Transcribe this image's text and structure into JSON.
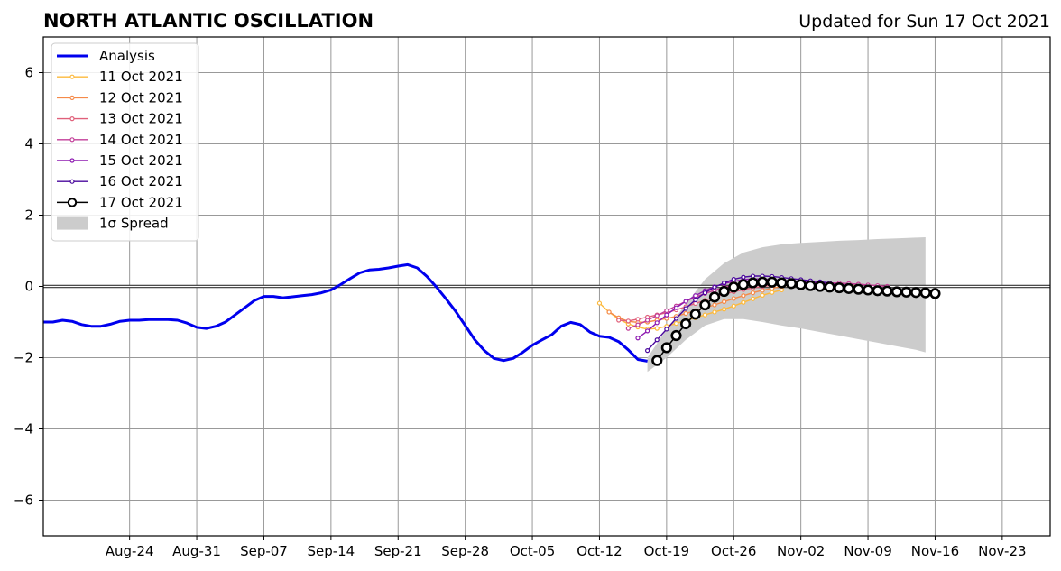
{
  "chart_data": {
    "type": "line",
    "title": "NORTH ATLANTIC OSCILLATION",
    "subtitle": "Updated for Sun 17 Oct 2021",
    "xlabel": "",
    "ylabel": "",
    "xlim": [
      "2021-08-15",
      "2021-11-28"
    ],
    "ylim": [
      -7,
      7
    ],
    "grid": true,
    "legend_position": "top-left",
    "x_ticks": [
      {
        "date": "2021-08-24",
        "label": "Aug-24"
      },
      {
        "date": "2021-08-31",
        "label": "Aug-31"
      },
      {
        "date": "2021-09-07",
        "label": "Sep-07"
      },
      {
        "date": "2021-09-14",
        "label": "Sep-14"
      },
      {
        "date": "2021-09-21",
        "label": "Sep-21"
      },
      {
        "date": "2021-09-28",
        "label": "Sep-28"
      },
      {
        "date": "2021-10-05",
        "label": "Oct-05"
      },
      {
        "date": "2021-10-12",
        "label": "Oct-12"
      },
      {
        "date": "2021-10-19",
        "label": "Oct-19"
      },
      {
        "date": "2021-10-26",
        "label": "Oct-26"
      },
      {
        "date": "2021-11-02",
        "label": "Nov-02"
      },
      {
        "date": "2021-11-09",
        "label": "Nov-09"
      },
      {
        "date": "2021-11-16",
        "label": "Nov-16"
      },
      {
        "date": "2021-11-23",
        "label": "Nov-23"
      }
    ],
    "y_ticks": [
      {
        "value": 6,
        "label": "6"
      },
      {
        "value": 4,
        "label": "4"
      },
      {
        "value": 2,
        "label": "2"
      },
      {
        "value": 0,
        "label": "0"
      },
      {
        "value": -2,
        "label": "−2"
      },
      {
        "value": -4,
        "label": "−4"
      },
      {
        "value": -6,
        "label": "−6"
      }
    ],
    "legend": [
      {
        "label": "Analysis",
        "color": "#0000ee",
        "style": "thick"
      },
      {
        "label": "11 Oct 2021",
        "color": "#fdb93b",
        "style": "small-marker"
      },
      {
        "label": "12 Oct 2021",
        "color": "#f58a49",
        "style": "small-marker"
      },
      {
        "label": "13 Oct 2021",
        "color": "#e0607a",
        "style": "small-marker"
      },
      {
        "label": "14 Oct 2021",
        "color": "#c23d98",
        "style": "small-marker"
      },
      {
        "label": "15 Oct 2021",
        "color": "#8d1ab1",
        "style": "small-marker"
      },
      {
        "label": "16 Oct 2021",
        "color": "#4a089d",
        "style": "small-marker"
      },
      {
        "label": "17 Oct 2021",
        "color": "#000000",
        "style": "big-marker"
      },
      {
        "label": "1σ Spread",
        "color": "#cccccc",
        "style": "patch"
      }
    ],
    "spread": {
      "name": "1σ Spread",
      "color": "#cccccc",
      "x": [
        "2021-10-17",
        "2021-10-19",
        "2021-10-21",
        "2021-10-23",
        "2021-10-25",
        "2021-10-27",
        "2021-10-29",
        "2021-10-31",
        "2021-11-02",
        "2021-11-04",
        "2021-11-06",
        "2021-11-08",
        "2021-11-10",
        "2021-11-12",
        "2021-11-14",
        "2021-11-15"
      ],
      "upper": [
        -2.0,
        -1.2,
        -0.5,
        0.2,
        0.65,
        0.95,
        1.1,
        1.18,
        1.22,
        1.25,
        1.28,
        1.3,
        1.33,
        1.35,
        1.37,
        1.38
      ],
      "lower": [
        -2.4,
        -2.0,
        -1.5,
        -1.1,
        -0.92,
        -0.92,
        -1.0,
        -1.1,
        -1.18,
        -1.28,
        -1.38,
        -1.48,
        -1.58,
        -1.68,
        -1.78,
        -1.85
      ]
    },
    "analysis": {
      "name": "Analysis",
      "color": "#0000ee",
      "x": [
        "2021-08-15",
        "2021-08-16",
        "2021-08-17",
        "2021-08-18",
        "2021-08-19",
        "2021-08-20",
        "2021-08-21",
        "2021-08-22",
        "2021-08-23",
        "2021-08-24",
        "2021-08-25",
        "2021-08-26",
        "2021-08-27",
        "2021-08-28",
        "2021-08-29",
        "2021-08-30",
        "2021-08-31",
        "2021-09-01",
        "2021-09-02",
        "2021-09-03",
        "2021-09-04",
        "2021-09-05",
        "2021-09-06",
        "2021-09-07",
        "2021-09-08",
        "2021-09-09",
        "2021-09-10",
        "2021-09-11",
        "2021-09-12",
        "2021-09-13",
        "2021-09-14",
        "2021-09-15",
        "2021-09-16",
        "2021-09-17",
        "2021-09-18",
        "2021-09-19",
        "2021-09-20",
        "2021-09-21",
        "2021-09-22",
        "2021-09-23",
        "2021-09-24",
        "2021-09-25",
        "2021-09-26",
        "2021-09-27",
        "2021-09-28",
        "2021-09-29",
        "2021-09-30",
        "2021-10-01",
        "2021-10-02",
        "2021-10-03",
        "2021-10-04",
        "2021-10-05",
        "2021-10-06",
        "2021-10-07",
        "2021-10-08",
        "2021-10-09",
        "2021-10-10",
        "2021-10-11",
        "2021-10-12",
        "2021-10-13",
        "2021-10-14",
        "2021-10-15",
        "2021-10-16",
        "2021-10-17"
      ],
      "values": [
        -1.0,
        -1.0,
        -0.95,
        -0.98,
        -1.07,
        -1.12,
        -1.12,
        -1.06,
        -0.98,
        -0.95,
        -0.95,
        -0.93,
        -0.93,
        -0.93,
        -0.95,
        -1.03,
        -1.15,
        -1.18,
        -1.12,
        -1.0,
        -0.8,
        -0.6,
        -0.4,
        -0.28,
        -0.28,
        -0.32,
        -0.29,
        -0.26,
        -0.23,
        -0.18,
        -0.1,
        0.05,
        0.22,
        0.38,
        0.46,
        0.48,
        0.52,
        0.57,
        0.61,
        0.52,
        0.28,
        -0.02,
        -0.35,
        -0.7,
        -1.1,
        -1.5,
        -1.8,
        -2.02,
        -2.08,
        -2.02,
        -1.85,
        -1.65,
        -1.5,
        -1.36,
        -1.12,
        -1.01,
        -1.07,
        -1.28,
        -1.4,
        -1.43,
        -1.55,
        -1.78,
        -2.05,
        -2.1
      ]
    },
    "series": [
      {
        "name": "11 Oct 2021",
        "color": "#fdb93b",
        "start": "2021-10-12",
        "values": [
          -0.47,
          -0.72,
          -0.92,
          -1.05,
          -1.14,
          -1.2,
          -1.18,
          -1.12,
          -1.04,
          -0.96,
          -0.88,
          -0.8,
          -0.72,
          -0.64,
          -0.55,
          -0.45,
          -0.35,
          -0.25,
          -0.17,
          -0.1
        ]
      },
      {
        "name": "12 Oct 2021",
        "color": "#f58a49",
        "start": "2021-10-13",
        "values": [
          -0.72,
          -0.88,
          -0.98,
          -1.01,
          -1.0,
          -0.95,
          -0.9,
          -0.84,
          -0.76,
          -0.68,
          -0.6,
          -0.52,
          -0.43,
          -0.34,
          -0.26,
          -0.18,
          -0.11,
          -0.05,
          0.0,
          0.04,
          0.06,
          0.07,
          0.07,
          0.06,
          0.04,
          0.02,
          0.0
        ]
      },
      {
        "name": "13 Oct 2021",
        "color": "#e0607a",
        "start": "2021-10-14",
        "values": [
          -0.95,
          -0.97,
          -0.92,
          -0.86,
          -0.8,
          -0.74,
          -0.66,
          -0.57,
          -0.48,
          -0.39,
          -0.3,
          -0.22,
          -0.15,
          -0.09,
          -0.04,
          0.0,
          0.03,
          0.06,
          0.08,
          0.09,
          0.1,
          0.1,
          0.1,
          0.09,
          0.08,
          0.06,
          0.04,
          0.02,
          0.0
        ]
      },
      {
        "name": "14 Oct 2021",
        "color": "#c23d98",
        "start": "2021-10-15",
        "values": [
          -1.18,
          -1.08,
          -0.95,
          -0.82,
          -0.68,
          -0.55,
          -0.42,
          -0.3,
          -0.2,
          -0.11,
          -0.03,
          0.04,
          0.09,
          0.12,
          0.14,
          0.15,
          0.15,
          0.14,
          0.13,
          0.12,
          0.11,
          0.1,
          0.09,
          0.08,
          0.06,
          0.04,
          0.02,
          0.0
        ]
      },
      {
        "name": "15 Oct 2021",
        "color": "#8d1ab1",
        "start": "2021-10-16",
        "values": [
          -1.45,
          -1.25,
          -1.02,
          -0.8,
          -0.6,
          -0.42,
          -0.26,
          -0.12,
          -0.01,
          0.08,
          0.14,
          0.19,
          0.21,
          0.21,
          0.19,
          0.17,
          0.15,
          0.13,
          0.11,
          0.09,
          0.07,
          0.05,
          0.03
        ]
      },
      {
        "name": "16 Oct 2021",
        "color": "#4a089d",
        "start": "2021-10-17",
        "values": [
          -1.8,
          -1.5,
          -1.2,
          -0.9,
          -0.62,
          -0.38,
          -0.18,
          -0.02,
          0.1,
          0.2,
          0.26,
          0.29,
          0.29,
          0.28,
          0.25,
          0.22,
          0.19,
          0.16,
          0.13,
          0.1
        ]
      },
      {
        "name": "17 Oct 2021",
        "color": "#000000",
        "start": "2021-10-18",
        "values": [
          -2.08,
          -1.72,
          -1.38,
          -1.05,
          -0.78,
          -0.52,
          -0.3,
          -0.14,
          -0.02,
          0.05,
          0.1,
          0.12,
          0.12,
          0.1,
          0.08,
          0.05,
          0.02,
          0.0,
          -0.02,
          -0.04,
          -0.06,
          -0.08,
          -0.1,
          -0.12,
          -0.13,
          -0.15,
          -0.16,
          -0.17,
          -0.18,
          -0.2
        ]
      }
    ]
  }
}
